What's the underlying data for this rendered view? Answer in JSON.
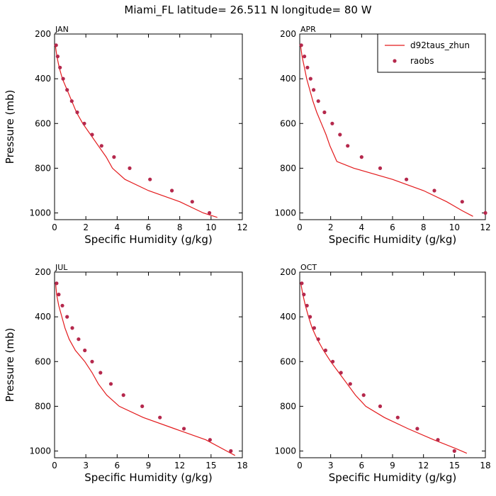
{
  "figure": {
    "title": "Miami_FL   latitude= 26.511 N longitude= 80 W"
  },
  "colors": {
    "model": "#e31a1c",
    "obs": "#b5284c",
    "axes": "#000000",
    "background": "#ffffff"
  },
  "chart_data": [
    {
      "type": "line",
      "panel_title": "JAN",
      "xlabel": "Specific Humidity (g/kg)",
      "ylabel": "Pressure (mb)",
      "xlim": [
        0,
        12
      ],
      "ylim": [
        200,
        1030
      ],
      "y_inverted": true,
      "xticks": [
        0,
        2,
        4,
        6,
        8,
        10,
        12
      ],
      "yticks": [
        200,
        400,
        600,
        800,
        1000
      ],
      "legend": null,
      "series": [
        {
          "name": "d92taus_zhun",
          "style": "line",
          "x": [
            0.05,
            0.15,
            0.3,
            0.5,
            0.8,
            1.1,
            1.4,
            1.8,
            2.3,
            2.8,
            3.3,
            3.7,
            4.5,
            6.0,
            8.0,
            9.5,
            10.4
          ],
          "y": [
            250,
            300,
            350,
            400,
            450,
            500,
            550,
            600,
            650,
            700,
            750,
            800,
            850,
            900,
            950,
            1000,
            1020
          ]
        },
        {
          "name": "raobs",
          "style": "markers",
          "x": [
            0.1,
            0.2,
            0.35,
            0.55,
            0.8,
            1.1,
            1.45,
            1.9,
            2.4,
            3.0,
            3.8,
            4.8,
            6.1,
            7.5,
            8.8,
            9.9
          ],
          "y": [
            250,
            300,
            350,
            400,
            450,
            500,
            550,
            600,
            650,
            700,
            750,
            800,
            850,
            900,
            950,
            1000
          ]
        }
      ]
    },
    {
      "type": "line",
      "panel_title": "APR",
      "xlabel": "Specific Humidity (g/kg)",
      "ylabel": "",
      "xlim": [
        0,
        12
      ],
      "ylim": [
        200,
        1030
      ],
      "y_inverted": true,
      "xticks": [
        0,
        2,
        4,
        6,
        8,
        10,
        12
      ],
      "yticks": [
        200,
        400,
        600,
        800,
        1000
      ],
      "legend": {
        "position": "top-right",
        "entries": [
          "d92taus_zhun",
          "raobs"
        ]
      },
      "series": [
        {
          "name": "d92taus_zhun",
          "style": "line",
          "x": [
            0.05,
            0.15,
            0.3,
            0.45,
            0.65,
            0.85,
            1.1,
            1.4,
            1.7,
            1.95,
            2.4,
            3.5,
            6.0,
            8.0,
            9.5,
            10.5,
            11.2
          ],
          "y": [
            250,
            300,
            350,
            400,
            450,
            500,
            550,
            600,
            650,
            700,
            770,
            800,
            850,
            900,
            950,
            990,
            1015
          ]
        },
        {
          "name": "raobs",
          "style": "markers",
          "x": [
            0.1,
            0.3,
            0.5,
            0.7,
            0.9,
            1.2,
            1.6,
            2.1,
            2.6,
            3.1,
            4.0,
            5.2,
            6.9,
            8.7,
            10.5,
            12.0
          ],
          "y": [
            250,
            300,
            350,
            400,
            450,
            500,
            550,
            600,
            650,
            700,
            750,
            800,
            850,
            900,
            950,
            1000
          ]
        }
      ]
    },
    {
      "type": "line",
      "panel_title": "JUL",
      "xlabel": "Specific Humidity (g/kg)",
      "ylabel": "Pressure (mb)",
      "xlim": [
        0,
        18
      ],
      "ylim": [
        200,
        1030
      ],
      "y_inverted": true,
      "xticks": [
        0,
        3,
        6,
        9,
        12,
        15,
        18
      ],
      "yticks": [
        200,
        400,
        600,
        800,
        1000
      ],
      "legend": null,
      "series": [
        {
          "name": "d92taus_zhun",
          "style": "line",
          "x": [
            0.1,
            0.2,
            0.4,
            0.7,
            1.0,
            1.4,
            2.0,
            2.9,
            3.6,
            4.2,
            5.0,
            6.2,
            8.5,
            11.5,
            14.5,
            16.5,
            17.3
          ],
          "y": [
            250,
            300,
            350,
            400,
            450,
            500,
            550,
            600,
            650,
            700,
            750,
            800,
            850,
            900,
            950,
            1000,
            1020
          ]
        },
        {
          "name": "raobs",
          "style": "markers",
          "x": [
            0.2,
            0.4,
            0.75,
            1.2,
            1.7,
            2.3,
            2.9,
            3.6,
            4.4,
            5.4,
            6.6,
            8.4,
            10.1,
            12.4,
            14.9,
            16.9
          ],
          "y": [
            250,
            300,
            350,
            400,
            450,
            500,
            550,
            600,
            650,
            700,
            750,
            800,
            850,
            900,
            950,
            1000
          ]
        }
      ]
    },
    {
      "type": "line",
      "panel_title": "OCT",
      "xlabel": "Specific Humidity (g/kg)",
      "ylabel": "",
      "xlim": [
        0,
        18
      ],
      "ylim": [
        200,
        1030
      ],
      "y_inverted": true,
      "xticks": [
        0,
        3,
        6,
        9,
        12,
        15,
        18
      ],
      "yticks": [
        200,
        400,
        600,
        800,
        1000
      ],
      "legend": null,
      "series": [
        {
          "name": "d92taus_zhun",
          "style": "line",
          "x": [
            0.1,
            0.3,
            0.55,
            0.85,
            1.2,
            1.7,
            2.3,
            3.0,
            3.8,
            4.6,
            5.4,
            6.4,
            8.2,
            10.5,
            13.0,
            15.2,
            16.2
          ],
          "y": [
            250,
            300,
            350,
            400,
            450,
            500,
            550,
            600,
            650,
            700,
            750,
            800,
            850,
            900,
            950,
            990,
            1010
          ]
        },
        {
          "name": "raobs",
          "style": "markers",
          "x": [
            0.2,
            0.4,
            0.7,
            1.0,
            1.4,
            1.8,
            2.5,
            3.2,
            4.0,
            4.9,
            6.2,
            7.8,
            9.5,
            11.4,
            13.4,
            15.0
          ],
          "y": [
            250,
            300,
            350,
            400,
            450,
            500,
            550,
            600,
            650,
            700,
            750,
            800,
            850,
            900,
            950,
            1000
          ]
        }
      ]
    }
  ]
}
